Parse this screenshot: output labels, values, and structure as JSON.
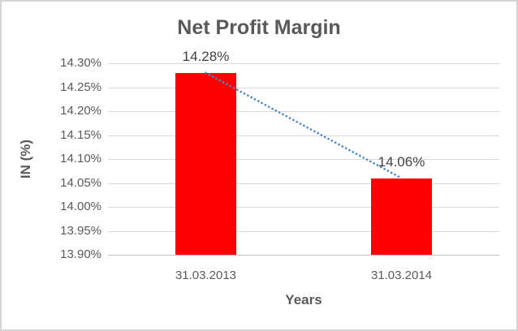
{
  "chart_data": {
    "type": "bar",
    "title": "Net Profit Margin",
    "xlabel": "Years",
    "ylabel": "IN (%)",
    "categories": [
      "31.03.2013",
      "31.03.2014"
    ],
    "values": [
      14.28,
      14.06
    ],
    "data_labels": [
      "14.28%",
      "14.06%"
    ],
    "ylim": [
      13.9,
      14.3
    ],
    "ytick_step": 0.05,
    "ytick_labels_top_to_bottom": [
      "14.30%",
      "14.25%",
      "14.20%",
      "14.15%",
      "14.10%",
      "14.05%",
      "14.00%",
      "13.95%",
      "13.90%"
    ],
    "grid": true,
    "legend": "none",
    "trendline": {
      "style": "dotted",
      "from_value": 14.28,
      "to_value": 14.06
    }
  },
  "colors": {
    "background": "#ffffff",
    "chart_border": "#d4d4d4",
    "title_text": "#595959",
    "axis_text": "#595959",
    "data_label_text": "#404040",
    "gridline": "#d9d9d9",
    "axis_line": "#bfbfbf",
    "bar": "#ff0000",
    "trendline": "#4a86c8"
  }
}
